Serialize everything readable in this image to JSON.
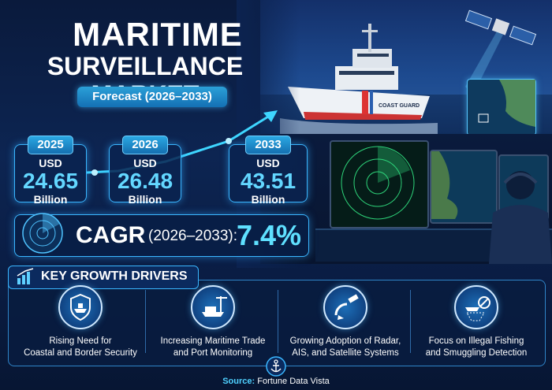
{
  "header": {
    "title_line1": "MARITIME",
    "title_line2": "SURVEILLANCE MARKET",
    "forecast_label": "Forecast (2026–2033)"
  },
  "values": [
    {
      "year": "2025",
      "currency": "USD",
      "amount": "24.65",
      "unit": "Billion"
    },
    {
      "year": "2026",
      "currency": "USD",
      "amount": "26.48",
      "unit": "Billion"
    },
    {
      "year": "2033",
      "currency": "USD",
      "amount": "43.51",
      "unit": "Billion"
    }
  ],
  "cagr": {
    "label": "CAGR",
    "period": "(2026–2033):",
    "value": "7.4%"
  },
  "drivers": {
    "title": "KEY GROWTH DRIVERS",
    "items": [
      {
        "line1": "Rising Need for",
        "line2": "Coastal and Border Security",
        "icon": "shield-ship-icon"
      },
      {
        "line1": "Increasing Maritime Trade",
        "line2": "and Port Monitoring",
        "icon": "port-crane-icon"
      },
      {
        "line1": "Growing Adoption of Radar,",
        "line2": "AIS, and Satellite Systems",
        "icon": "radar-satellite-icon"
      },
      {
        "line1": "Focus on Illegal Fishing",
        "line2": "and Smuggling Detection",
        "icon": "fishing-net-icon"
      }
    ]
  },
  "ship": {
    "hull_text": "COAST GUARD"
  },
  "source": {
    "label": "Source:",
    "name": "Fortune Data Vista"
  },
  "colors": {
    "accent": "#3ab6ff",
    "value": "#63d7ff",
    "cagr": "#5fe0ff",
    "background": "#0a1a3c"
  }
}
